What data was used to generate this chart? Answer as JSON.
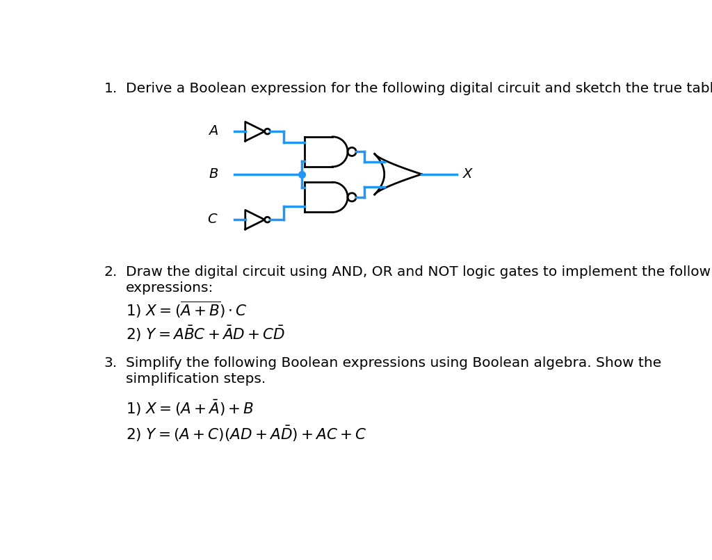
{
  "bg_color": "#ffffff",
  "wire_color": "#2196F3",
  "gate_color": "#000000",
  "lw_wire": 2.5,
  "lw_gate": 2.0,
  "q1_text": "Derive a Boolean expression for the following digital circuit and sketch the true table.",
  "q2_line1": "Draw the digital circuit using AND, OR and NOT logic gates to implement the following",
  "q2_line2": "expressions:",
  "q3_line1": "Simplify the following Boolean expressions using Boolean algebra. Show the",
  "q3_line2": "simplification steps."
}
